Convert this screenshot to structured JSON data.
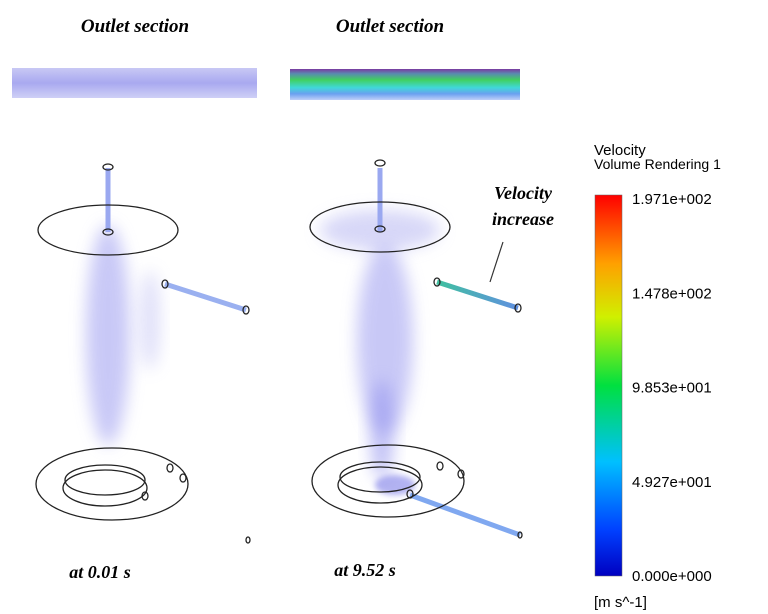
{
  "panels": [
    {
      "title": "Outlet section",
      "caption": "at 0.01 s"
    },
    {
      "title": "Outlet section",
      "caption": "at 9.52 s",
      "annotation": [
        "Velocity",
        "increase"
      ]
    }
  ],
  "legend": {
    "title": "Velocity",
    "subtitle": "Volume Rendering 1",
    "ticks": [
      "1.971e+002",
      "1.478e+002",
      "9.853e+001",
      "4.927e+001",
      "0.000e+000"
    ],
    "unit": "[m s^-1]"
  }
}
